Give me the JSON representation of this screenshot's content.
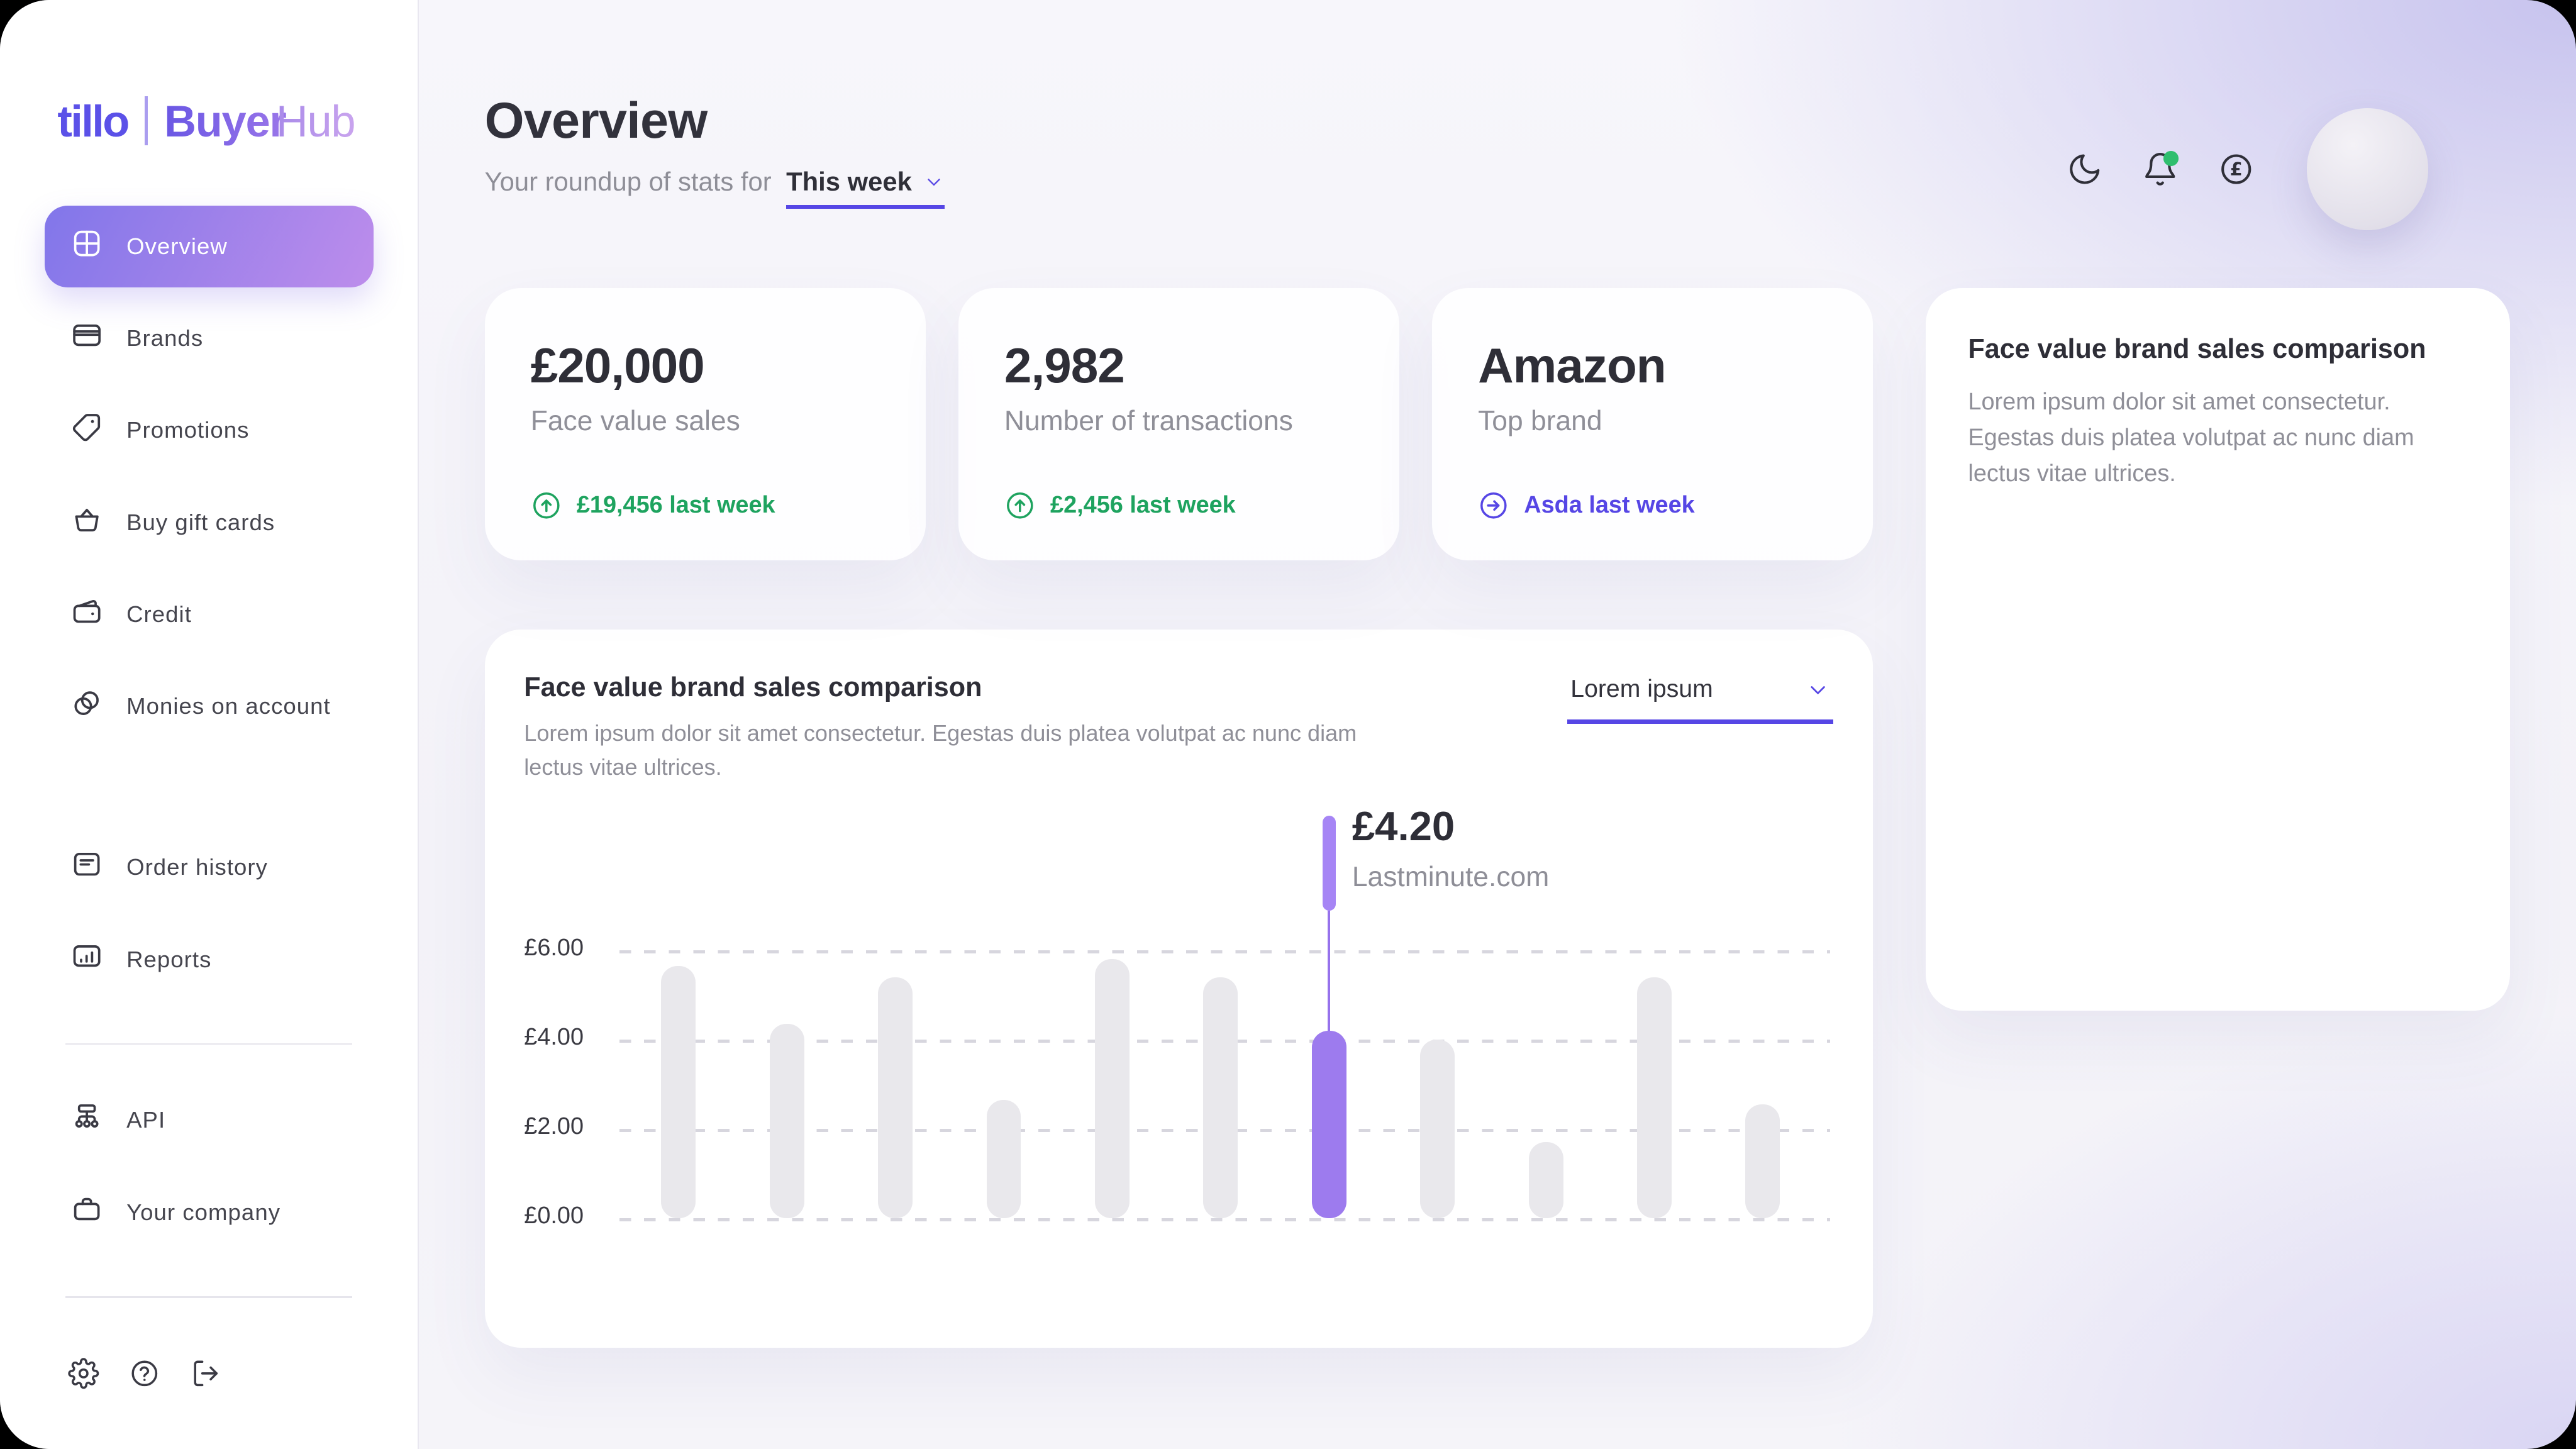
{
  "brand": {
    "left": "tillo",
    "right_bold": "Buyer",
    "right_light": "Hub"
  },
  "sidebar": {
    "items": [
      {
        "label": "Overview",
        "icon": "grid-icon",
        "active": true
      },
      {
        "label": "Brands",
        "icon": "credit-card-icon"
      },
      {
        "label": "Promotions",
        "icon": "tag-icon"
      },
      {
        "label": "Buy gift cards",
        "icon": "basket-icon"
      },
      {
        "label": "Credit",
        "icon": "wallet-icon"
      },
      {
        "label": "Monies on account",
        "icon": "coins-icon"
      },
      {
        "label": "Order history",
        "icon": "document-icon"
      },
      {
        "label": "Reports",
        "icon": "bar-chart-icon"
      },
      {
        "label": "API",
        "icon": "network-icon"
      },
      {
        "label": "Your company",
        "icon": "briefcase-icon"
      }
    ],
    "footer_icons": [
      "settings-icon",
      "help-icon",
      "logout-icon"
    ]
  },
  "header": {
    "title": "Overview",
    "subtitle_prefix": "Your roundup of stats for",
    "period": "This week",
    "top_icons": [
      "moon-icon",
      "bell-icon (green notification dot)",
      "pound-circle-icon",
      "avatar"
    ]
  },
  "stats": [
    {
      "value": "£20,000",
      "label": "Face value sales",
      "footer": "£19,456 last week",
      "footer_icon": "arrow-up-circle",
      "footer_color": "green"
    },
    {
      "value": "2,982",
      "label": "Number of transactions",
      "footer": "£2,456 last week",
      "footer_icon": "arrow-up-circle",
      "footer_color": "green"
    },
    {
      "value": "Amazon",
      "label": "Top brand",
      "footer": "Asda last week",
      "footer_icon": "arrow-right-circle",
      "footer_color": "purple"
    }
  ],
  "chart_card": {
    "title": "Face value brand sales comparison",
    "subtitle": "Lorem ipsum dolor sit amet consectetur. Egestas duis platea volutpat ac nunc diam lectus vitae ultrices.",
    "dropdown_value": "Lorem ipsum"
  },
  "chart_data": {
    "type": "bar",
    "values": [
      5.65,
      4.35,
      5.4,
      2.65,
      5.8,
      5.4,
      4.2,
      4.0,
      1.7,
      5.4,
      2.55
    ],
    "highlight_index": 6,
    "ylim": [
      0,
      6
    ],
    "y_ticks": [
      "£6.00",
      "£4.00",
      "£2.00",
      "£0.00"
    ],
    "grid": "dashed horizontal",
    "tooltip": {
      "value": "£4.20",
      "label": "Lastminute.com"
    },
    "xlabel": "",
    "ylabel": "",
    "legend": "none"
  },
  "side_card": {
    "title": "Face value brand sales comparison",
    "body": "Lorem ipsum dolor sit amet consectetur. Egestas duis platea volutpat ac nunc diam lectus vitae ultrices."
  },
  "colors": {
    "accent": "#5646e5",
    "green": "#1ea35f",
    "bar": "#e9e8ec",
    "bar_highlight": "#9d7bee",
    "nav_grad_a": "#8176ea",
    "nav_grad_b": "#bd8deb",
    "logo": "#5b51e8",
    "text_dark": "#32323c",
    "text_gray": "#8e8e97",
    "corner_glow": "#c7c3ee",
    "notification_dot": "#2fbe6e"
  }
}
